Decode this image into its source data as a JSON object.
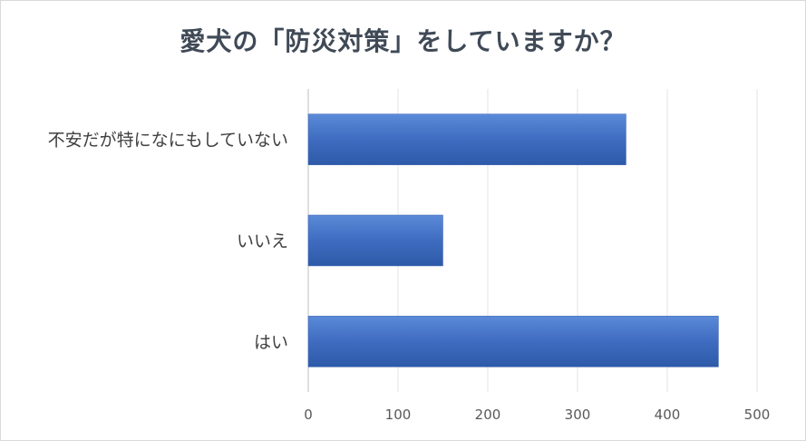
{
  "chart_data": {
    "type": "bar",
    "orientation": "horizontal",
    "title": "愛犬の「防災対策」をしていますか？",
    "categories": [
      "不安だが特になにもしていない",
      "いいえ",
      "はい"
    ],
    "values": [
      354,
      150,
      457
    ],
    "xlim": [
      0,
      500
    ],
    "xticks": [
      "0",
      "100",
      "200",
      "300",
      "400",
      "500"
    ],
    "grid": true,
    "legend": "none",
    "bar_color": "#4472c4"
  }
}
